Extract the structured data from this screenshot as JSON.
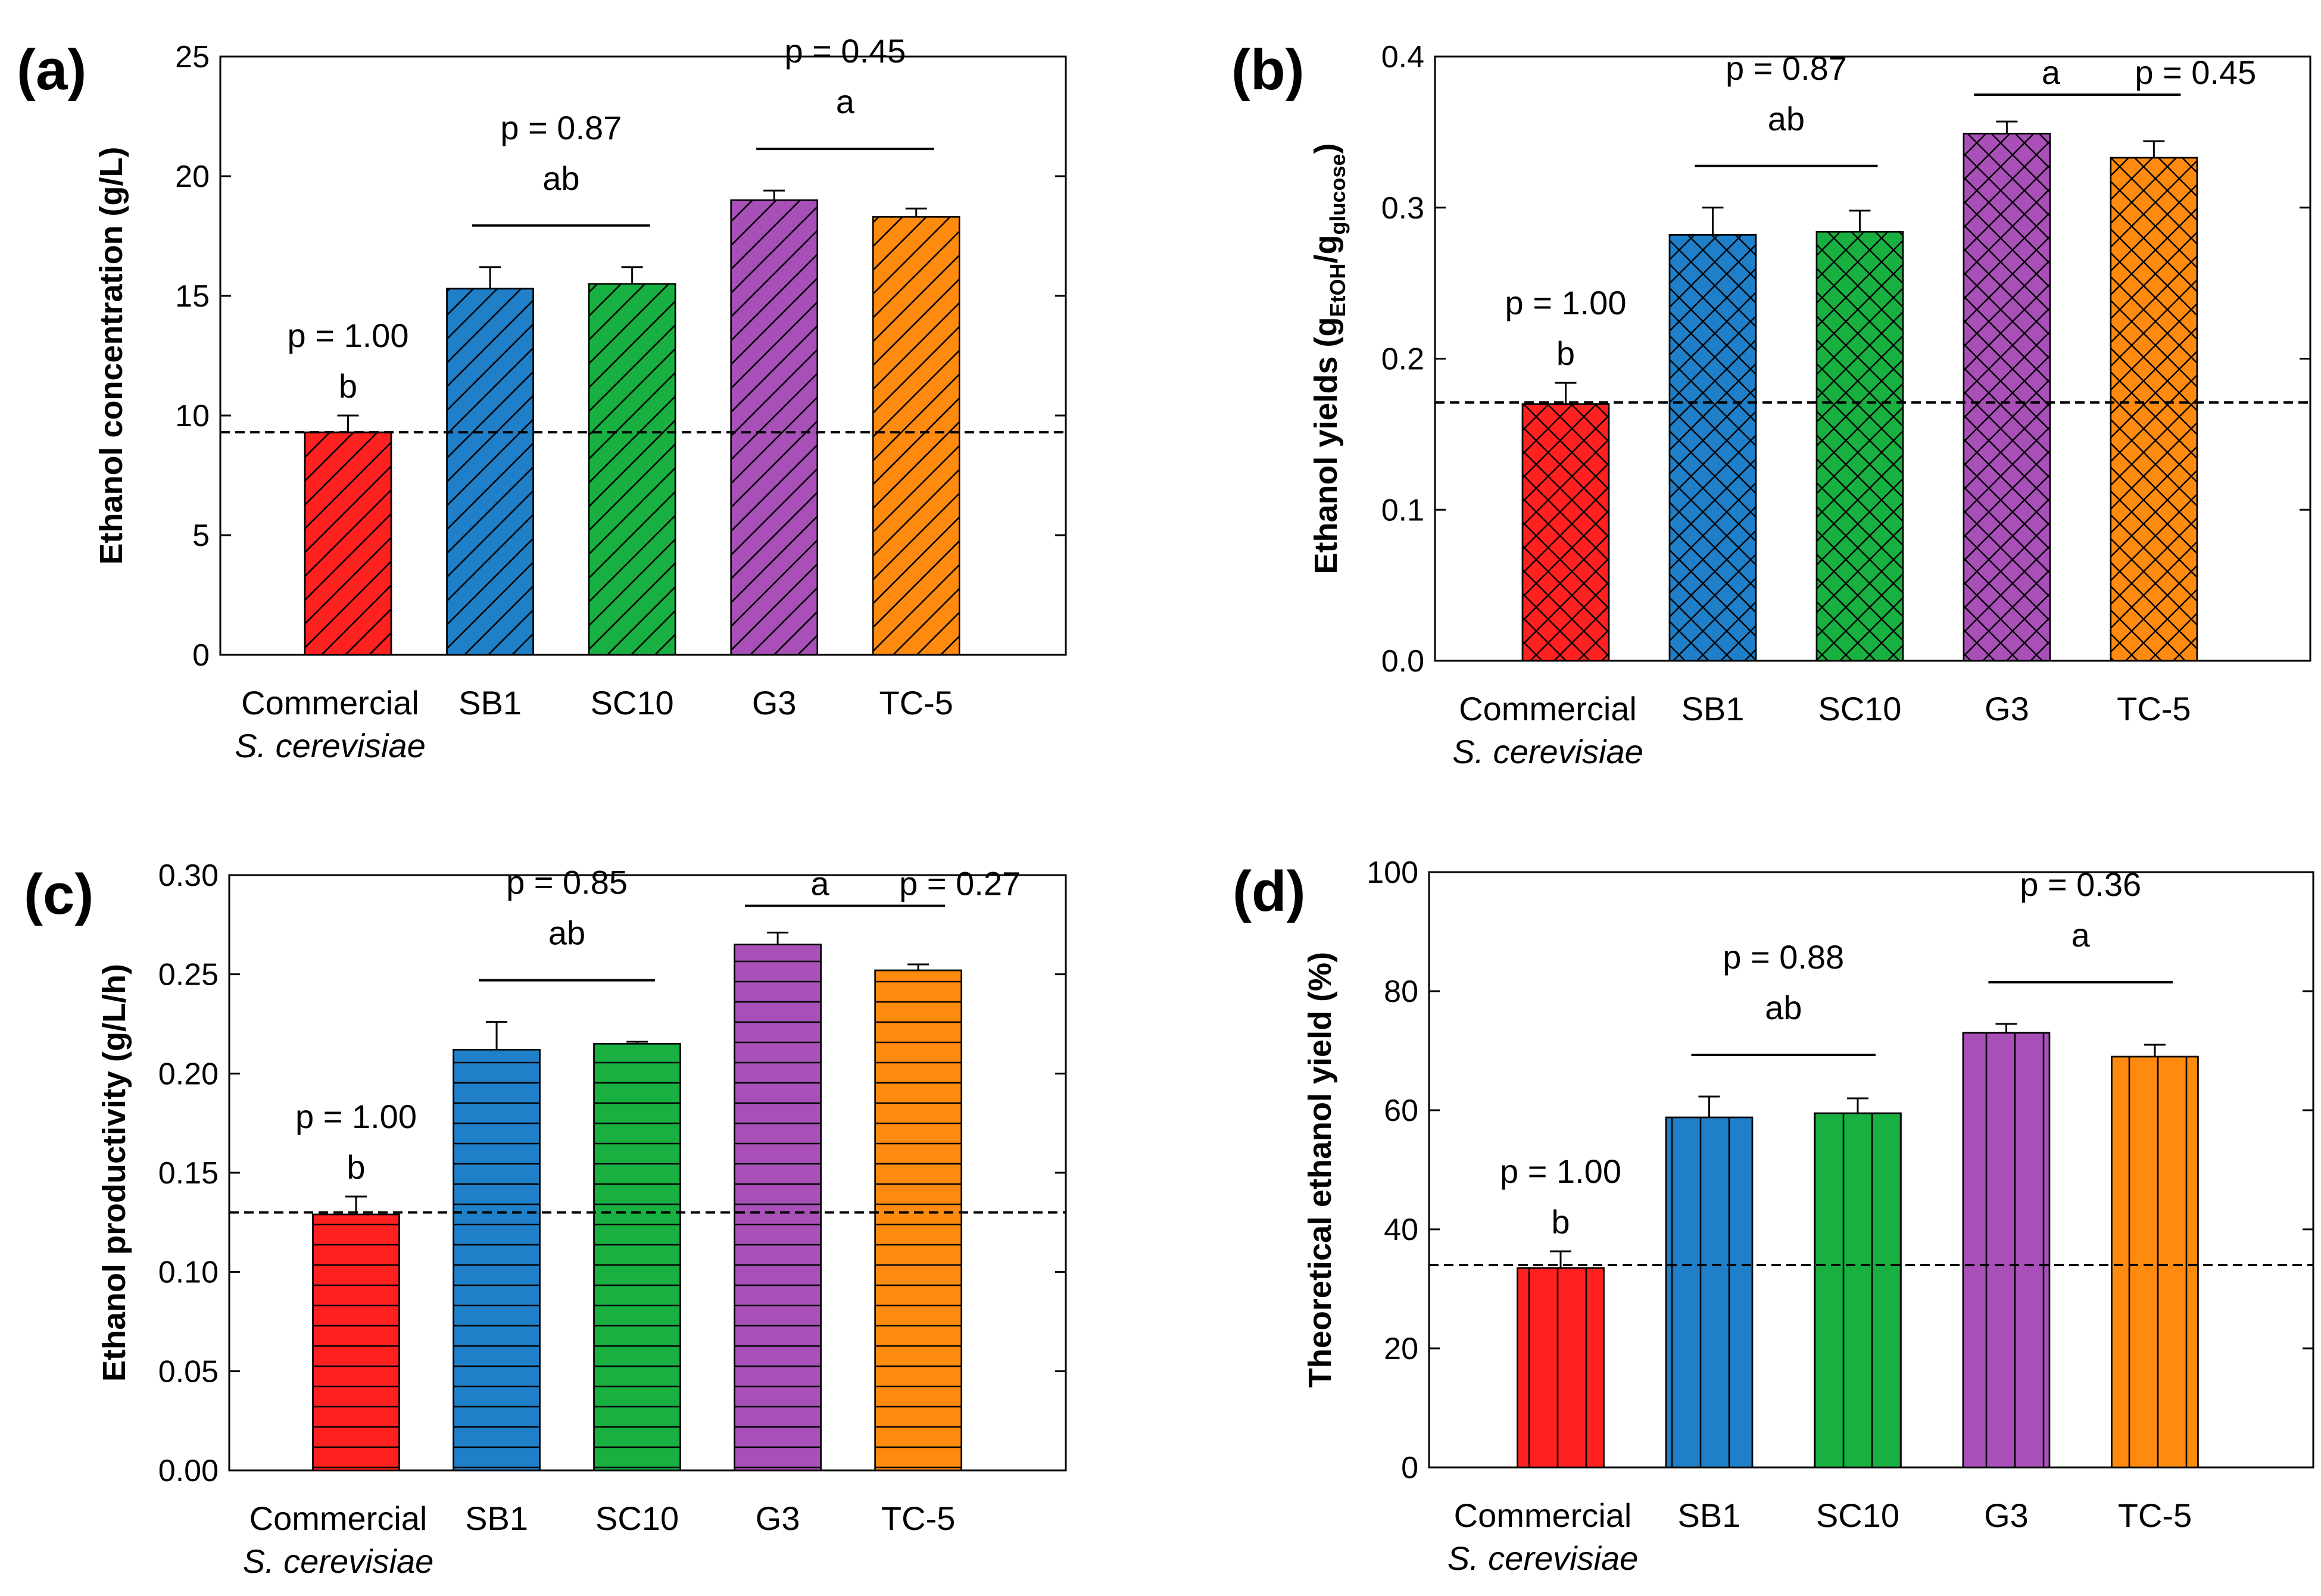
{
  "chart_data": [
    {
      "panel": "(a)",
      "type": "bar",
      "ylabel": "Ethanol concentration (g/L)",
      "categories": [
        "Commercial",
        "SB1",
        "SC10",
        "G3",
        "TC-5"
      ],
      "category_sub": "S. cerevisiae",
      "values": [
        9.3,
        15.3,
        15.5,
        19.0,
        18.3
      ],
      "errors": [
        0.7,
        0.9,
        0.7,
        0.4,
        0.35
      ],
      "colors": [
        "#ff2020",
        "#1f7fc8",
        "#18b040",
        "#a850b8",
        "#ff8a10"
      ],
      "pattern": "diag",
      "ylim": [
        0,
        25
      ],
      "yticks": [
        0,
        5,
        10,
        15,
        20,
        25
      ],
      "ytick_labels": [
        "0",
        "5",
        "10",
        "15",
        "20",
        "25"
      ],
      "reference_line": 9.3,
      "groups": [
        {
          "p": "p = 1.00",
          "letter": "b",
          "from": 0,
          "to": 0,
          "bracket": false
        },
        {
          "p": "p = 0.87",
          "letter": "ab",
          "from": 1,
          "to": 2,
          "bracket": true
        },
        {
          "p": "p = 0.45",
          "letter": "a",
          "from": 3,
          "to": 4,
          "bracket": true
        }
      ]
    },
    {
      "panel": "(b)",
      "type": "bar",
      "ylabel": "Ethanol yields (g",
      "ylabel_sub1": "EtOH",
      "ylabel_mid": "/g",
      "ylabel_sub2": "glucose",
      "ylabel_end": ")",
      "categories": [
        "Commercial",
        "SB1",
        "SC10",
        "G3",
        "TC-5"
      ],
      "category_sub": "S. cerevisiae",
      "values": [
        0.17,
        0.282,
        0.284,
        0.349,
        0.333
      ],
      "errors": [
        0.014,
        0.018,
        0.014,
        0.008,
        0.011
      ],
      "colors": [
        "#ff2020",
        "#1f7fc8",
        "#18b040",
        "#a850b8",
        "#ff8a10"
      ],
      "pattern": "cross",
      "ylim": [
        0,
        0.4
      ],
      "yticks": [
        0,
        0.1,
        0.2,
        0.3,
        0.4
      ],
      "ytick_labels": [
        "0.0",
        "0.1",
        "0.2",
        "0.3",
        "0.4"
      ],
      "reference_line": 0.171,
      "groups": [
        {
          "p": "p = 1.00",
          "letter": "b",
          "from": 0,
          "to": 0,
          "bracket": false
        },
        {
          "p": "p = 0.87",
          "letter": "ab",
          "from": 1,
          "to": 2,
          "bracket": true
        },
        {
          "p": "p = 0.45",
          "letter": "a",
          "from": 3,
          "to": 4,
          "bracket": true,
          "inline": true
        }
      ]
    },
    {
      "panel": "(c)",
      "type": "bar",
      "ylabel": "Ethanol productivity (g/L/h)",
      "categories": [
        "Commercial",
        "SB1",
        "SC10",
        "G3",
        "TC-5"
      ],
      "category_sub": "S. cerevisiae",
      "values": [
        0.129,
        0.212,
        0.215,
        0.265,
        0.252
      ],
      "errors": [
        0.009,
        0.014,
        0.001,
        0.006,
        0.003
      ],
      "colors": [
        "#ff2020",
        "#1f7fc8",
        "#18b040",
        "#a850b8",
        "#ff8a10"
      ],
      "pattern": "horiz",
      "ylim": [
        0,
        0.3
      ],
      "yticks": [
        0,
        0.05,
        0.1,
        0.15,
        0.2,
        0.25,
        0.3
      ],
      "ytick_labels": [
        "0.00",
        "0.05",
        "0.10",
        "0.15",
        "0.20",
        "0.25",
        "0.30"
      ],
      "reference_line": 0.13,
      "groups": [
        {
          "p": "p = 1.00",
          "letter": "b",
          "from": 0,
          "to": 0,
          "bracket": false
        },
        {
          "p": "p = 0.85",
          "letter": "ab",
          "from": 1,
          "to": 2,
          "bracket": true
        },
        {
          "p": "p = 0.27",
          "letter": "a",
          "from": 3,
          "to": 4,
          "bracket": true,
          "inline": true
        }
      ]
    },
    {
      "panel": "(d)",
      "type": "bar",
      "ylabel": "Theoretical ethanol yield (%)",
      "categories": [
        "Commercial",
        "SB1",
        "SC10",
        "G3",
        "TC-5"
      ],
      "category_sub": "S. cerevisiae",
      "values": [
        33.5,
        58.8,
        59.5,
        73.0,
        69.0
      ],
      "errors": [
        2.8,
        3.5,
        2.5,
        1.5,
        2.0
      ],
      "colors": [
        "#ff2020",
        "#1f7fc8",
        "#18b040",
        "#a850b8",
        "#ff8a10"
      ],
      "pattern": "vert",
      "ylim": [
        0,
        100
      ],
      "yticks": [
        0,
        20,
        40,
        60,
        80,
        100
      ],
      "ytick_labels": [
        "0",
        "20",
        "40",
        "60",
        "80",
        "100"
      ],
      "reference_line": 34,
      "groups": [
        {
          "p": "p = 1.00",
          "letter": "b",
          "from": 0,
          "to": 0,
          "bracket": false
        },
        {
          "p": "p = 0.88",
          "letter": "ab",
          "from": 1,
          "to": 2,
          "bracket": true
        },
        {
          "p": "p = 0.36",
          "letter": "a",
          "from": 3,
          "to": 4,
          "bracket": true
        }
      ]
    }
  ]
}
